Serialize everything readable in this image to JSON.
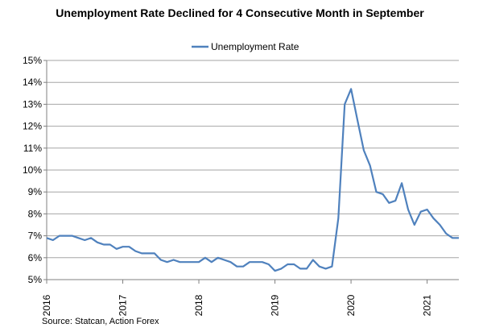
{
  "chart_data": {
    "type": "line",
    "title": "Unemployment  Rate Declined for 4 Consecutive Month in September",
    "xlabel": "",
    "ylabel": "",
    "ylim": [
      5,
      15
    ],
    "y_ticks": [
      "5%",
      "6%",
      "7%",
      "8%",
      "9%",
      "10%",
      "11%",
      "12%",
      "13%",
      "14%",
      "15%"
    ],
    "x_ticks": [
      "2016",
      "2017",
      "2018",
      "2019",
      "2020",
      "2021"
    ],
    "x_tick_values": [
      2016,
      2017,
      2018,
      2019,
      2020,
      2021
    ],
    "xlim": [
      2016,
      2021.417
    ],
    "grid": "horizontal",
    "legend": "top-center",
    "line_color": "#4f81bd",
    "series": [
      {
        "name": "Unemployment Rate",
        "x": [
          2016.0,
          2016.083,
          2016.167,
          2016.25,
          2016.333,
          2016.417,
          2016.5,
          2016.583,
          2016.667,
          2016.75,
          2016.833,
          2016.917,
          2017.0,
          2017.083,
          2017.167,
          2017.25,
          2017.333,
          2017.417,
          2017.5,
          2017.583,
          2017.667,
          2017.75,
          2017.833,
          2017.917,
          2018.0,
          2018.083,
          2018.167,
          2018.25,
          2018.333,
          2018.417,
          2018.5,
          2018.583,
          2018.667,
          2018.75,
          2018.833,
          2018.917,
          2019.0,
          2019.083,
          2019.167,
          2019.25,
          2019.333,
          2019.417,
          2019.5,
          2019.583,
          2019.667,
          2019.75,
          2019.833,
          2019.917,
          2020.0,
          2020.083,
          2020.167,
          2020.25,
          2020.333,
          2020.417,
          2020.5,
          2020.583,
          2020.667,
          2020.75,
          2020.833,
          2020.917,
          2021.0,
          2021.083,
          2021.167,
          2021.25,
          2021.333,
          2021.417
        ],
        "values": [
          6.9,
          6.8,
          7.0,
          7.0,
          7.0,
          6.9,
          6.8,
          6.9,
          6.7,
          6.6,
          6.6,
          6.4,
          6.5,
          6.5,
          6.3,
          6.2,
          6.2,
          6.2,
          5.9,
          5.8,
          5.9,
          5.8,
          5.8,
          5.8,
          5.8,
          6.0,
          5.8,
          6.0,
          5.9,
          5.8,
          5.6,
          5.6,
          5.8,
          5.8,
          5.8,
          5.7,
          5.4,
          5.5,
          5.7,
          5.7,
          5.5,
          5.5,
          5.9,
          5.6,
          5.5,
          5.6,
          7.8,
          13.0,
          13.7,
          12.3,
          10.9,
          10.2,
          9.0,
          8.9,
          8.5,
          8.6,
          9.4,
          8.2,
          7.5,
          8.1,
          8.2,
          7.8,
          7.5,
          7.1,
          6.9,
          6.9
        ]
      }
    ],
    "source": "Source: Statcan, Action Forex"
  }
}
